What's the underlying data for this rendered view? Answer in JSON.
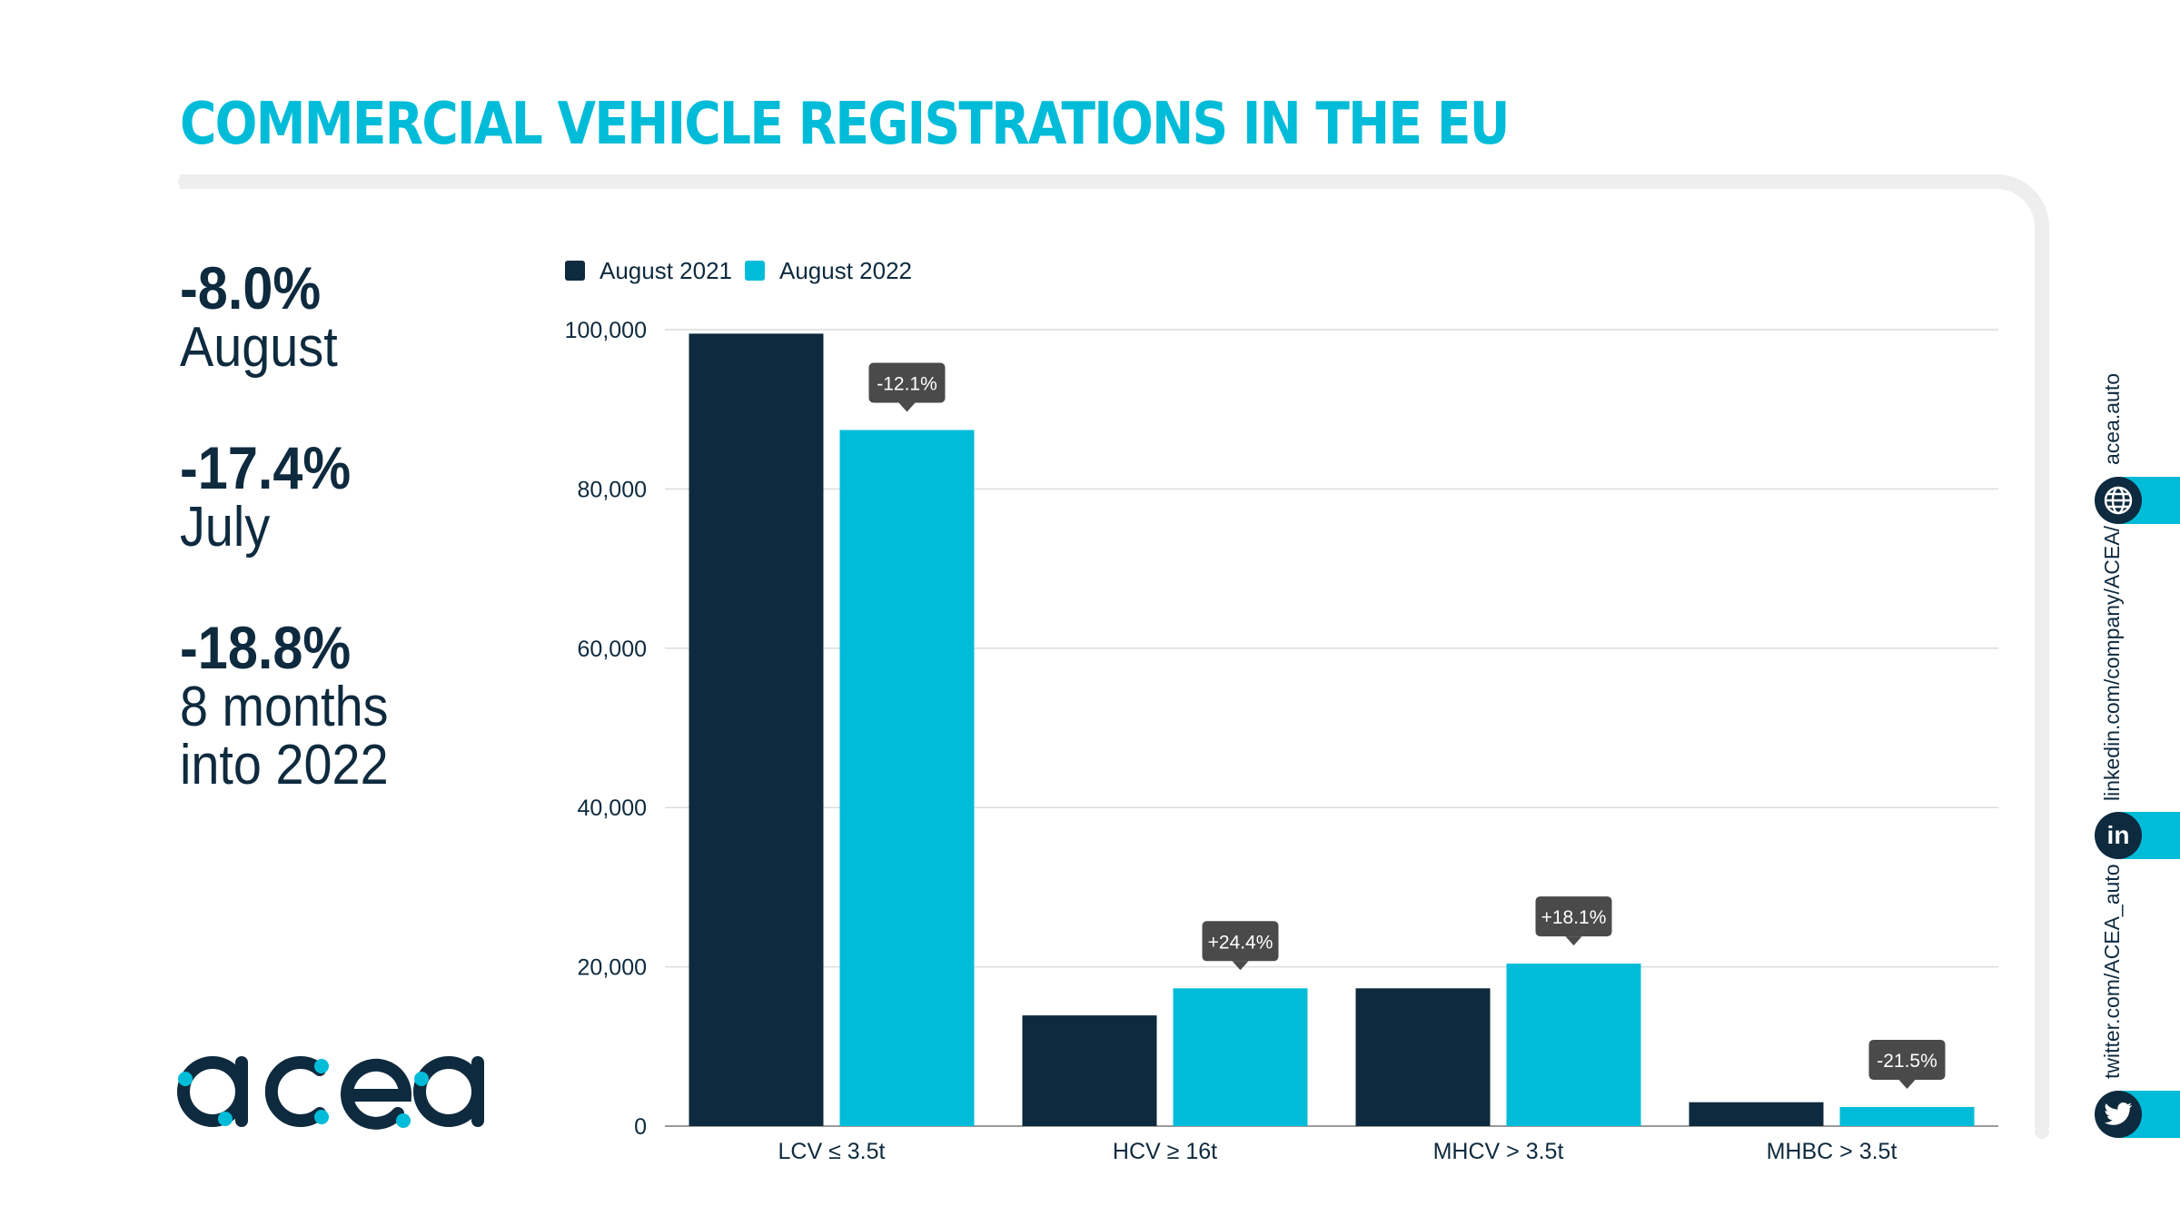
{
  "title": "COMMERCIAL VEHICLE REGISTRATIONS IN THE EU",
  "stats": [
    {
      "pct": "-8.0%",
      "label": "August",
      "label2": ""
    },
    {
      "pct": "-17.4%",
      "label": "July",
      "label2": ""
    },
    {
      "pct": "-18.8%",
      "label": "8 months",
      "label2": "into 2022"
    }
  ],
  "logo": {
    "text": "acea"
  },
  "social": {
    "website": "acea.auto",
    "linkedin": "linkedin.com/company/ACEA/",
    "twitter": "twitter.com/ACEA_auto",
    "linkedin_glyph": "in"
  },
  "colors": {
    "dark": "#0e2a3e",
    "accent": "#00bcd8",
    "badge": "#4a4a4a"
  },
  "icons": [
    "globe-icon",
    "linkedin-icon",
    "twitter-icon"
  ],
  "chart_data": {
    "type": "bar",
    "categories": [
      "LCV ≤ 3.5t",
      "HCV ≥ 16t",
      "MHCV > 3.5t",
      "MHBC > 3.5t"
    ],
    "series": [
      {
        "name": "August 2021",
        "color": "#0e2a3e",
        "values": [
          99500,
          13900,
          17300,
          3000
        ]
      },
      {
        "name": "August 2022",
        "color": "#00bcd8",
        "values": [
          87400,
          17300,
          20400,
          2400
        ]
      }
    ],
    "change_labels": [
      "-12.1%",
      "+24.4%",
      "+18.1%",
      "-21.5%"
    ],
    "ylim": [
      0,
      100000
    ],
    "yticks": [
      0,
      20000,
      40000,
      60000,
      80000,
      100000
    ],
    "ytick_labels": [
      "0",
      "20,000",
      "40,000",
      "60,000",
      "80,000",
      "100,000"
    ],
    "grid": true,
    "legend_position": "top-left"
  }
}
